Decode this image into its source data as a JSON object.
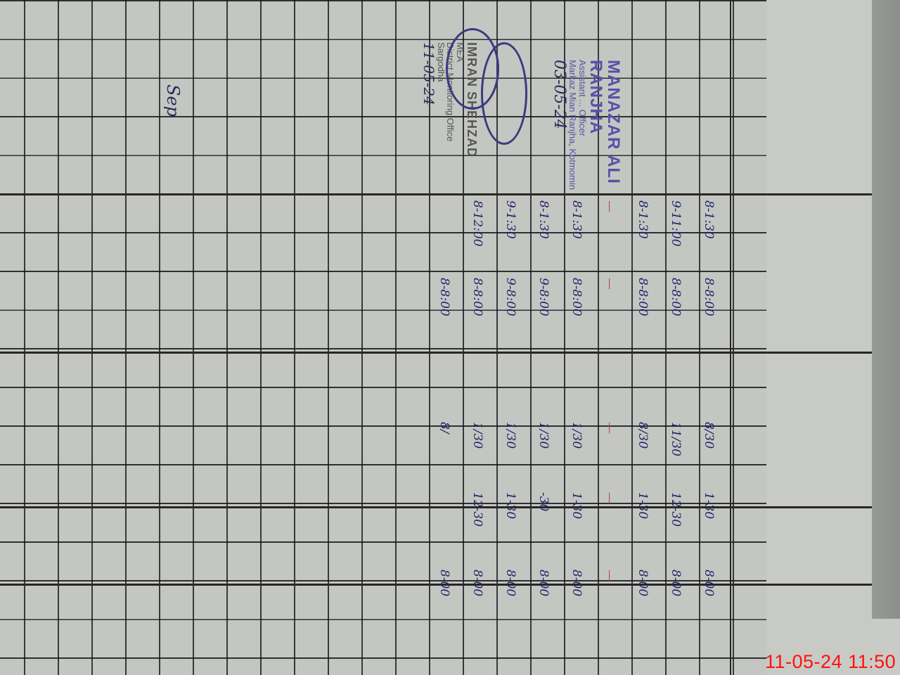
{
  "timestamp": "11-05-24  11:50",
  "register": {
    "month_label": "Sep",
    "rows": [
      {
        "a": "8-1:30",
        "b": "8-8:00",
        "c": "8/30",
        "d": "1-30",
        "e": "8-00",
        "red": false
      },
      {
        "a": "9-11:00",
        "b": "8-8:00",
        "c": "11/30",
        "d": "12-30",
        "e": "8-00",
        "red": false
      },
      {
        "a": "8-1:30",
        "b": "8-8:00",
        "c": "8/30",
        "d": "1-30",
        "e": "8-00",
        "red": false
      },
      {
        "a": "—",
        "b": "—",
        "c": "—",
        "d": "—",
        "e": "—",
        "red": true
      },
      {
        "a": "8-1:30",
        "b": "8-8:00",
        "c": "1/30",
        "d": "1-30",
        "e": "8-00",
        "red": false
      },
      {
        "a": "8-1:30",
        "b": "9-8:00",
        "c": "1/30",
        "d": "-30",
        "e": "8-00",
        "red": false
      },
      {
        "a": "9-1:30",
        "b": "9-8:00",
        "c": "1/30",
        "d": "1-30",
        "e": "8-00",
        "red": false
      },
      {
        "a": "8-12:00",
        "b": "8-8:00",
        "c": "1/30",
        "d": "12-30",
        "e": "8-00",
        "red": false
      },
      {
        "a": "",
        "b": "8-8:00",
        "c": "8/",
        "d": "",
        "e": "8-00",
        "red": false
      }
    ]
  },
  "stamp1": {
    "name": "MANAZAR ALI RANJHA",
    "title": "Assistant ... Officer",
    "place": "Markaz Mian Ranjha, Kotmomin",
    "date": "03-05-24"
  },
  "stamp2": {
    "name": "IMRAN SHEHZAD",
    "role": "MEA",
    "office": "District Monitoring Office",
    "city": "Sargodha",
    "date": "11-05-24"
  },
  "colors": {
    "ink_blue": "#22226a",
    "ink_red": "#b24a4a",
    "stamp": "#5b4fa8",
    "timestamp": "#ff1010"
  }
}
